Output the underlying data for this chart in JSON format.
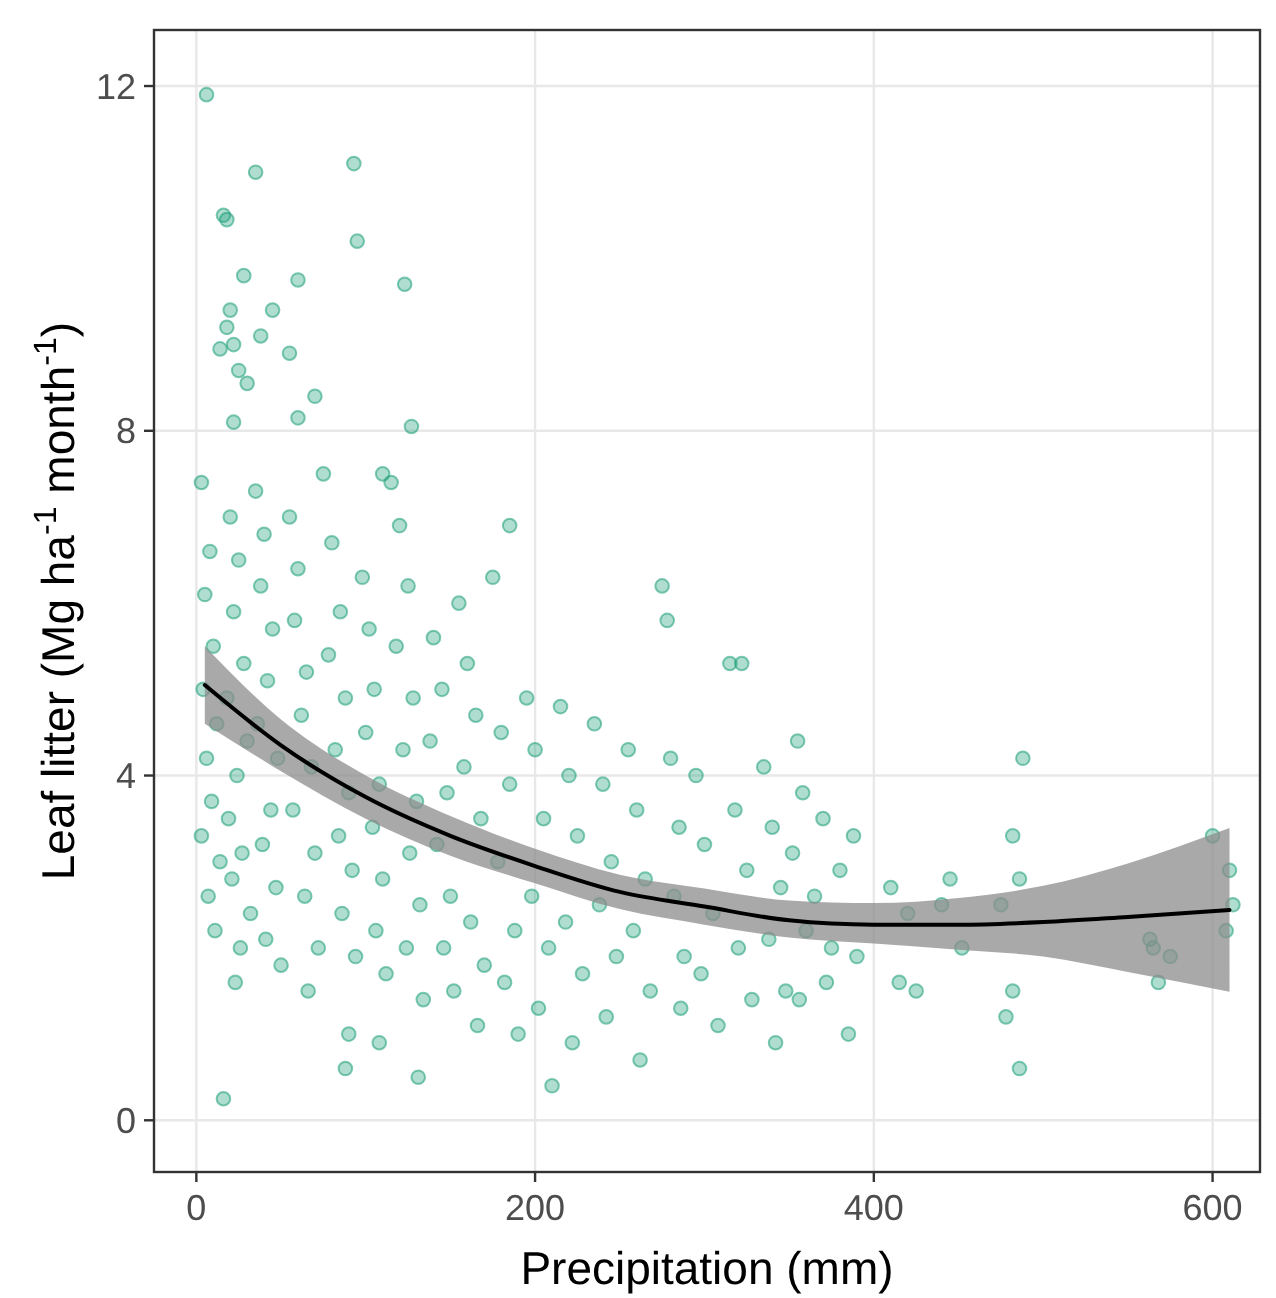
{
  "chart_data": {
    "type": "scatter",
    "xlabel": "Precipitation (mm)",
    "ylabel": "Leaf litter (Mg ha$^{-1}$ month$^{-1}$)",
    "xlim": [
      -25,
      628
    ],
    "ylim": [
      -0.6,
      12.65
    ],
    "xticks": [
      0,
      200,
      400,
      600
    ],
    "yticks": [
      0,
      4,
      8,
      12
    ],
    "grid": true,
    "marker": "circle",
    "series": [
      {
        "color": "#1b9e77",
        "x": [
          6,
          16,
          18,
          35,
          93,
          95,
          123,
          20,
          28,
          45,
          60,
          18,
          22,
          14,
          38,
          25,
          30,
          55,
          70,
          60,
          22,
          127,
          110,
          185,
          3,
          8,
          5,
          10,
          4,
          12,
          6,
          9,
          3,
          14,
          7,
          11,
          16,
          20,
          25,
          22,
          28,
          18,
          30,
          24,
          19,
          27,
          21,
          32,
          26,
          23,
          35,
          40,
          38,
          45,
          42,
          36,
          48,
          44,
          39,
          47,
          41,
          50,
          55,
          60,
          58,
          65,
          62,
          68,
          57,
          70,
          64,
          72,
          66,
          75,
          80,
          85,
          78,
          88,
          82,
          90,
          84,
          92,
          86,
          94,
          90,
          88,
          98,
          102,
          105,
          100,
          108,
          104,
          110,
          106,
          112,
          108,
          115,
          120,
          125,
          118,
          128,
          122,
          130,
          126,
          132,
          124,
          134,
          131,
          140,
          145,
          138,
          148,
          142,
          150,
          146,
          152,
          155,
          160,
          165,
          158,
          168,
          162,
          170,
          166,
          175,
          180,
          185,
          178,
          188,
          182,
          190,
          195,
          200,
          205,
          198,
          208,
          202,
          210,
          215,
          220,
          225,
          218,
          228,
          222,
          235,
          240,
          245,
          238,
          248,
          242,
          255,
          260,
          265,
          258,
          268,
          262,
          275,
          278,
          280,
          285,
          282,
          288,
          286,
          295,
          300,
          305,
          298,
          308,
          315,
          322,
          318,
          325,
          320,
          328,
          335,
          340,
          345,
          338,
          348,
          342,
          355,
          358,
          352,
          360,
          356,
          365,
          370,
          375,
          372,
          380,
          385,
          388,
          390,
          410,
          415,
          420,
          425,
          440,
          445,
          452,
          475,
          478,
          482,
          482,
          486,
          486,
          488,
          563,
          565,
          568,
          575,
          600,
          610,
          612,
          608
        ],
        "values": [
          11.9,
          10.5,
          10.45,
          11.0,
          11.1,
          10.2,
          9.7,
          9.4,
          9.8,
          9.4,
          9.75,
          9.2,
          9.0,
          8.95,
          9.1,
          8.7,
          8.55,
          8.9,
          8.4,
          8.15,
          8.1,
          8.05,
          7.5,
          6.9,
          7.4,
          6.6,
          6.1,
          5.5,
          5.0,
          4.6,
          4.2,
          3.7,
          3.3,
          3.0,
          2.6,
          2.2,
          0.25,
          7.0,
          6.5,
          5.9,
          5.3,
          4.9,
          4.4,
          4.0,
          3.5,
          3.1,
          2.8,
          2.4,
          2.0,
          1.6,
          7.3,
          6.8,
          6.2,
          5.7,
          5.1,
          4.6,
          4.2,
          3.6,
          3.2,
          2.7,
          2.1,
          1.8,
          7.0,
          6.4,
          5.8,
          5.2,
          4.7,
          4.1,
          3.6,
          3.1,
          2.6,
          2.0,
          1.5,
          7.5,
          6.7,
          5.9,
          5.4,
          4.9,
          4.3,
          3.8,
          3.3,
          2.9,
          2.4,
          1.9,
          1.0,
          0.6,
          6.3,
          5.7,
          5.0,
          4.5,
          3.9,
          3.4,
          2.8,
          2.2,
          1.7,
          0.9,
          7.4,
          6.9,
          6.2,
          5.5,
          4.9,
          4.3,
          3.7,
          3.1,
          2.5,
          2.0,
          1.4,
          0.5,
          5.6,
          5.0,
          4.4,
          3.8,
          3.2,
          2.6,
          2.0,
          1.5,
          6.0,
          5.3,
          4.7,
          4.1,
          3.5,
          2.3,
          1.8,
          1.1,
          6.3,
          4.5,
          3.9,
          3.0,
          2.2,
          1.6,
          1.0,
          4.9,
          4.3,
          3.5,
          2.6,
          2.0,
          1.3,
          0.4,
          4.8,
          4.0,
          3.3,
          2.3,
          1.7,
          0.9,
          4.6,
          3.9,
          3.0,
          2.5,
          1.9,
          1.2,
          4.3,
          3.6,
          2.8,
          2.2,
          1.5,
          0.7,
          6.2,
          5.8,
          4.2,
          3.4,
          2.6,
          1.9,
          1.3,
          4.0,
          3.2,
          2.4,
          1.7,
          1.1,
          5.3,
          5.3,
          3.6,
          2.9,
          2.0,
          1.4,
          4.1,
          3.4,
          2.7,
          2.1,
          1.5,
          0.9,
          4.4,
          3.8,
          3.1,
          2.2,
          1.4,
          2.6,
          3.5,
          2.0,
          1.6,
          2.9,
          1.0,
          3.3,
          1.9,
          2.7,
          1.6,
          2.4,
          1.5,
          2.5,
          2.8,
          2.0,
          2.5,
          1.2,
          1.5,
          3.3,
          2.8,
          0.6,
          4.2,
          2.1,
          2.0,
          1.6,
          1.9,
          3.3,
          2.9,
          2.5,
          2.2
        ]
      },
      {
        "type": "line",
        "marker": "none",
        "color": "#000000",
        "x": [
          5,
          50,
          100,
          150,
          200,
          250,
          300,
          350,
          400,
          450,
          500,
          550,
          610
        ],
        "values": [
          5.05,
          4.35,
          3.75,
          3.3,
          2.95,
          2.65,
          2.48,
          2.32,
          2.27,
          2.27,
          2.3,
          2.36,
          2.44
        ],
        "lower": [
          4.6,
          4.05,
          3.5,
          3.07,
          2.75,
          2.45,
          2.27,
          2.12,
          2.05,
          1.98,
          1.9,
          1.72,
          1.49
        ],
        "upper": [
          5.5,
          4.65,
          4.0,
          3.53,
          3.15,
          2.85,
          2.69,
          2.55,
          2.52,
          2.58,
          2.72,
          2.98,
          3.39
        ]
      }
    ]
  }
}
